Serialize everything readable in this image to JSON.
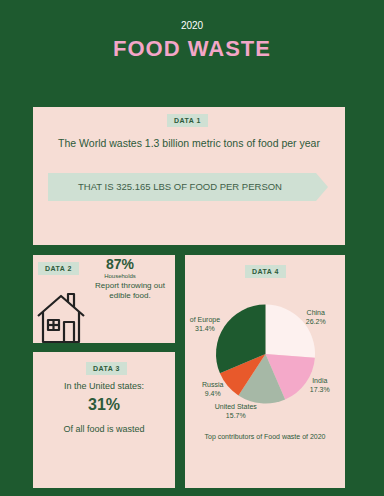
{
  "header": {
    "year": "2020",
    "title": "FOOD WASTE"
  },
  "data1": {
    "label": "DATA 1",
    "text": "The World wastes 1.3 billion metric tons of food per year",
    "banner": "THAT IS 325.165 LBS OF FOOD PER PERSON"
  },
  "data2": {
    "label": "DATA 2",
    "stat": "87%",
    "line1": "Households",
    "line2": "Report throwing out edible food."
  },
  "data3": {
    "label": "DATA 3",
    "text": "In the United states:",
    "stat": "31%",
    "caption": "Of all food is wasted"
  },
  "data4": {
    "label": "DATA 4"
  },
  "chart_data": {
    "type": "pie",
    "title": "Top contributors of Food waste of 2020",
    "categories": [
      "China",
      "India",
      "United States",
      "Russia",
      "of Europe"
    ],
    "values": [
      26.2,
      17.3,
      15.7,
      9.4,
      31.4
    ],
    "value_labels": [
      "26.2%",
      "17.3%",
      "15.7%",
      "9.4%",
      "31.4%"
    ],
    "colors": [
      "#fdf1ef",
      "#f4a9c9",
      "#a6b8a6",
      "#e8592b",
      "#1e5a2f"
    ],
    "data_labels": true
  }
}
